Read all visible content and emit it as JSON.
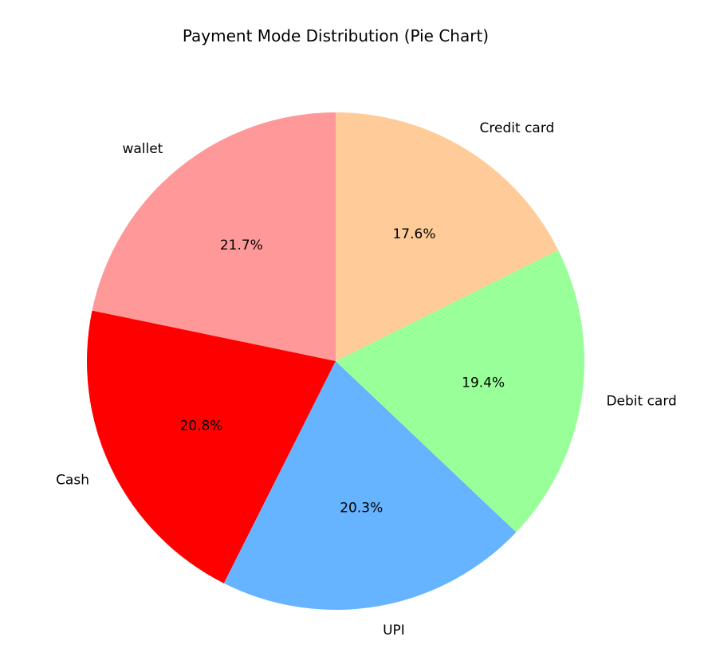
{
  "chart_data": {
    "type": "pie",
    "title": "Payment Mode Distribution (Pie Chart)",
    "start_angle_deg": 90,
    "direction": "counterclockwise",
    "slices": [
      {
        "label": "wallet",
        "value": 21.7,
        "pct_label": "21.7%",
        "color": "#ff9999"
      },
      {
        "label": "Cash",
        "value": 20.8,
        "pct_label": "20.8%",
        "color": "#ff0000"
      },
      {
        "label": "UPI",
        "value": 20.3,
        "pct_label": "20.3%",
        "color": "#66b3ff"
      },
      {
        "label": "Debit card",
        "value": 19.4,
        "pct_label": "19.4%",
        "color": "#99ff99"
      },
      {
        "label": "Credit card",
        "value": 17.6,
        "pct_label": "17.6%",
        "color": "#ffcc99"
      }
    ]
  }
}
